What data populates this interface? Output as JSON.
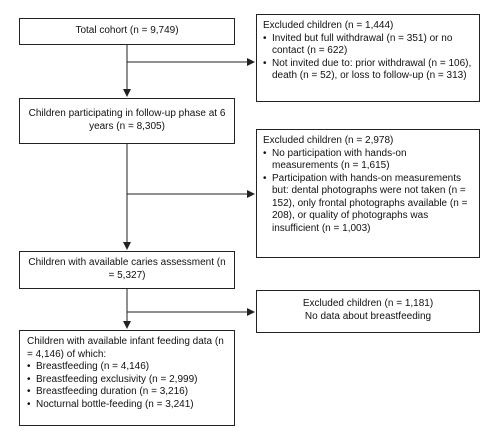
{
  "boxes": {
    "total": "Total cohort (n = 9,749)",
    "excl1": {
      "title": "Excluded children (n = 1,444)",
      "items": [
        "Invited but full withdrawal (n = 351) or no contact (n = 622)",
        "Not invited due to: prior  withdrawal (n = 106), death (n = 52), or loss to follow-up (n = 313)"
      ]
    },
    "followup": "Children participating in follow-up phase at 6 years (n = 8,305)",
    "excl2": {
      "title": "Excluded children (n = 2,978)",
      "items": [
        "No participation with hands-on measurements (n = 1,615)",
        "Participation with hands-on measurements but: dental photographs were not taken (n = 152), only frontal photographs available (n = 208), or quality of photographs was insufficient (n = 1,003)"
      ]
    },
    "caries": "Children with available caries assessment (n = 5,327)",
    "excl3": {
      "line1": "Excluded children (n = 1,181)",
      "line2": "No data about breastfeeding"
    },
    "feeding": {
      "title": "Children with available infant feeding data (n = 4,146) of which:",
      "items": [
        "Breastfeeding (n = 4,146)",
        "Breastfeeding exclusivity (n = 2,999)",
        "Breastfeeding duration (n = 3,216)",
        "Nocturnal bottle-feeding (n = 3,241)"
      ]
    }
  }
}
